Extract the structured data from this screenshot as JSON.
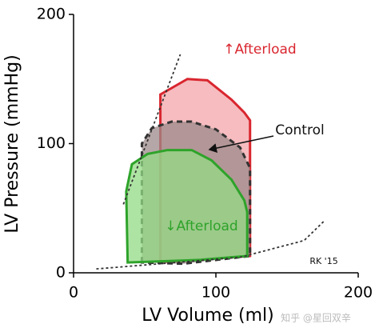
{
  "chart_data": {
    "type": "line",
    "xlabel": "LV Volume (ml)",
    "ylabel": "LV Pressure (mmHg)",
    "xlim": [
      0,
      200
    ],
    "xticks": [
      0,
      100,
      200
    ],
    "ylim": [
      0,
      200
    ],
    "yticks": [
      0,
      100,
      200
    ],
    "series": [
      {
        "color": "#d9262f",
        "fill": "#f3a6aa",
        "style": "solid",
        "x": [
          61,
          61,
          80,
          94,
          111,
          120,
          124,
          124,
          61
        ],
        "values": [
          8,
          138,
          150,
          149,
          134,
          124,
          118,
          13,
          8
        ]
      },
      {
        "color": "#333333",
        "fill": "#9c8a8a",
        "style": "dashed",
        "x": [
          48,
          48,
          55,
          69,
          83,
          100,
          117,
          124,
          124,
          77,
          48
        ],
        "values": [
          8,
          100,
          112,
          117,
          117,
          111,
          97,
          81,
          13,
          7,
          8
        ]
      },
      {
        "color": "#2ea32a",
        "fill": "#93db84",
        "style": "solid",
        "x": [
          38,
          37,
          41,
          52,
          66,
          83,
          97,
          111,
          120,
          122,
          122,
          89,
          38
        ],
        "values": [
          8,
          63,
          84,
          92,
          95,
          95,
          87,
          72,
          56,
          47,
          13,
          10,
          8
        ]
      },
      {
        "color": "#333333",
        "style": "dotted",
        "x": [
          35,
          75
        ],
        "values": [
          53,
          169
        ]
      },
      {
        "color": "#333333",
        "style": "dotted",
        "x": [
          16,
          117,
          162,
          176
        ],
        "values": [
          3,
          12,
          25,
          40
        ]
      }
    ],
    "annotations": [
      {
        "text": "↑Afterload",
        "color": "#d9262f"
      },
      {
        "text": "Control",
        "color": "#111111"
      },
      {
        "text": "↓Afterload",
        "color": "#2ea32a"
      },
      {
        "text": "RK '15",
        "color": "#111111"
      },
      {
        "text": "知乎 @星回双辛",
        "color": "#bbbbbb"
      }
    ]
  }
}
